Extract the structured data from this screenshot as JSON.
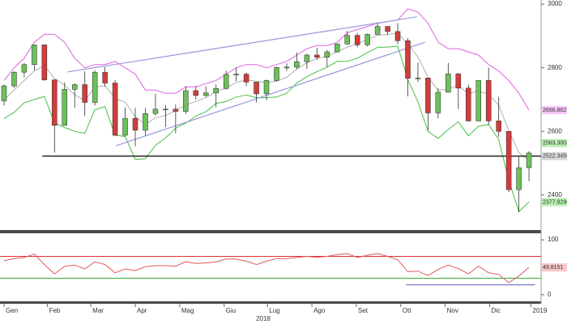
{
  "chart_data": [
    {
      "type": "candlestick",
      "open": [
        2696,
        2743,
        2786,
        2810,
        2872,
        2762,
        2619,
        2732,
        2747,
        2691,
        2786,
        2752,
        2588,
        2641,
        2604,
        2656,
        2670,
        2670,
        2663,
        2728,
        2713,
        2721,
        2735,
        2779,
        2780,
        2755,
        2718,
        2760,
        2801,
        2802,
        2819,
        2840,
        2833,
        2850,
        2875,
        2902,
        2872,
        2905,
        2930,
        2914,
        2885,
        2767,
        2768,
        2658,
        2723,
        2781,
        2736,
        2633,
        2760,
        2633,
        2600,
        2417,
        2486
      ],
      "high": [
        2748,
        2789,
        2815,
        2873,
        2870,
        2763,
        2754,
        2752,
        2789,
        2792,
        2802,
        2761,
        2676,
        2674,
        2674,
        2718,
        2683,
        2685,
        2742,
        2742,
        2742,
        2748,
        2791,
        2801,
        2785,
        2755,
        2763,
        2804,
        2814,
        2848,
        2844,
        2863,
        2856,
        2877,
        2916,
        2909,
        2908,
        2941,
        2931,
        2940,
        2894,
        2816,
        2768,
        2736,
        2815,
        2784,
        2747,
        2761,
        2800,
        2708,
        2601,
        2520,
        2538
      ],
      "low": [
        2682,
        2736,
        2770,
        2791,
        2759,
        2533,
        2619,
        2675,
        2648,
        2681,
        2741,
        2585,
        2584,
        2553,
        2587,
        2650,
        2613,
        2594,
        2655,
        2700,
        2708,
        2676,
        2731,
        2758,
        2742,
        2691,
        2698,
        2756,
        2790,
        2795,
        2796,
        2825,
        2802,
        2848,
        2872,
        2864,
        2867,
        2903,
        2903,
        2874,
        2710,
        2755,
        2603,
        2641,
        2722,
        2670,
        2631,
        2631,
        2621,
        2583,
        2409,
        2346,
        2443
      ],
      "close": [
        2743,
        2786,
        2810,
        2872,
        2762,
        2619,
        2732,
        2747,
        2691,
        2786,
        2752,
        2588,
        2641,
        2604,
        2656,
        2670,
        2670,
        2663,
        2728,
        2713,
        2721,
        2735,
        2779,
        2780,
        2755,
        2718,
        2760,
        2801,
        2802,
        2819,
        2840,
        2833,
        2850,
        2875,
        2902,
        2872,
        2905,
        2930,
        2914,
        2885,
        2767,
        2768,
        2658,
        2723,
        2781,
        2736,
        2633,
        2760,
        2633,
        2600,
        2417,
        2486,
        2532
      ],
      "up_color": "#6cc05a",
      "down_color": "#d23c3c",
      "upper_band": {
        "color": "#e060e0",
        "values": [
          2760,
          2800,
          2830,
          2880,
          2905,
          2905,
          2880,
          2830,
          2800,
          2810,
          2810,
          2820,
          2800,
          2780,
          2730,
          2730,
          2720,
          2720,
          2740,
          2740,
          2750,
          2760,
          2780,
          2800,
          2810,
          2810,
          2800,
          2810,
          2820,
          2840,
          2860,
          2870,
          2870,
          2880,
          2910,
          2920,
          2930,
          2940,
          2945,
          2950,
          2985,
          2975,
          2940,
          2880,
          2860,
          2860,
          2850,
          2840,
          2810,
          2790,
          2760,
          2720,
          2667
        ]
      },
      "middle_band": {
        "color": "#b0b0b0",
        "values": [
          2700,
          2730,
          2760,
          2790,
          2807,
          2766,
          2746,
          2715,
          2697,
          2739,
          2744,
          2704,
          2692,
          2646,
          2622,
          2643,
          2650,
          2665,
          2683,
          2694,
          2706,
          2724,
          2737,
          2754,
          2762,
          2758,
          2753,
          2759,
          2770,
          2796,
          2816,
          2829,
          2836,
          2850,
          2865,
          2875,
          2889,
          2902,
          2905,
          2909,
          2874,
          2834,
          2770,
          2729,
          2733,
          2745,
          2718,
          2728,
          2716,
          2682,
          2603,
          2534,
          2509
        ]
      },
      "lower_band": {
        "color": "#44c044",
        "values": [
          2640,
          2660,
          2690,
          2700,
          2710,
          2627,
          2612,
          2600,
          2594,
          2668,
          2678,
          2588,
          2584,
          2512,
          2514,
          2556,
          2580,
          2610,
          2626,
          2648,
          2662,
          2688,
          2694,
          2708,
          2714,
          2706,
          2706,
          2708,
          2720,
          2752,
          2772,
          2788,
          2802,
          2820,
          2820,
          2830,
          2848,
          2864,
          2865,
          2868,
          2763,
          2693,
          2600,
          2578,
          2606,
          2630,
          2586,
          2616,
          2622,
          2574,
          2446,
          2348,
          2378
        ]
      },
      "trendlines": [
        {
          "color": "#9a96d8",
          "x": [
            6.3,
            40.9
          ],
          "y": [
            2787,
            2960
          ]
        },
        {
          "color": "#9a96d8",
          "x": [
            11.1,
            41.7
          ],
          "y": [
            2555,
            2880
          ]
        }
      ],
      "hlines": [
        {
          "value": 2522.345,
          "label": "2522.3450",
          "color": "#000000",
          "from": 3.8
        }
      ],
      "price_labels": [
        {
          "value": 2666.8622,
          "label": "2666.8622",
          "color": "#f7c6f7"
        },
        {
          "value": 2563.3003,
          "label": "2563.3003",
          "color": "#b8f0b0"
        },
        {
          "value": 2522.345,
          "label": "2522.3450",
          "color": "#d8d8d8"
        },
        {
          "value": 2377.829,
          "label": "2377.8290",
          "color": "#b8f0b0"
        }
      ],
      "xlim": [
        -0.4,
        53.2
      ],
      "ylim": [
        2290,
        3013
      ],
      "yticks": [
        2400,
        2600,
        2800,
        3000
      ]
    },
    {
      "type": "line",
      "values": [
        62,
        66,
        68,
        74,
        55,
        38,
        52,
        54,
        47,
        60,
        55,
        40,
        47,
        44,
        51,
        53,
        53,
        52,
        60,
        57,
        58,
        60,
        65,
        65,
        61,
        55,
        61,
        66,
        66,
        68,
        70,
        68,
        70,
        73,
        75,
        68,
        72,
        75,
        70,
        64,
        42,
        43,
        35,
        46,
        54,
        48,
        38,
        52,
        40,
        37,
        22,
        34,
        50
      ],
      "color": "#e05a5a",
      "levels": [
        {
          "value": 70,
          "color": "#e03030"
        },
        {
          "value": 30,
          "color": "#30b030"
        }
      ],
      "trendlines": [
        {
          "color": "#6e6ec8",
          "x": [
            39.8,
            52.6
          ],
          "y": [
            18,
            18
          ]
        }
      ],
      "value_label": {
        "value": 49.8151,
        "color": "#f7c6c6"
      },
      "xlim": [
        -0.4,
        53.2
      ],
      "ylim": [
        -12,
        112
      ],
      "yticks": [
        0,
        100
      ],
      "xticks": [
        {
          "value": 0,
          "label": "Gen"
        },
        {
          "value": 4.3,
          "label": "Feb"
        },
        {
          "value": 8.6,
          "label": "Mar"
        },
        {
          "value": 13,
          "label": "Apr"
        },
        {
          "value": 17.4,
          "label": "Mag"
        },
        {
          "value": 21.8,
          "label": "Giu"
        },
        {
          "value": 26.1,
          "label": "Lug"
        },
        {
          "value": 30.5,
          "label": "Ago"
        },
        {
          "value": 34.9,
          "label": "Set"
        },
        {
          "value": 39.3,
          "label": "Ott"
        },
        {
          "value": 43.7,
          "label": "Nov"
        },
        {
          "value": 48.1,
          "label": "Dic"
        },
        {
          "value": 52.2,
          "label": "2019"
        }
      ],
      "year_label": "2018"
    }
  ]
}
